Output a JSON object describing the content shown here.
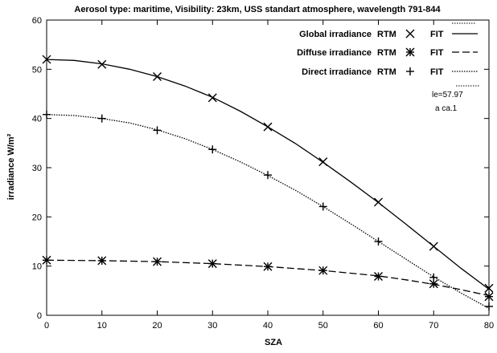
{
  "chart_data": {
    "type": "line",
    "title": "Aerosol type: maritime, Visibility: 23km, USS standart atmosphere, wavelength 791-844",
    "xlabel": "SZA",
    "ylabel": "irradiance W/m²",
    "xlim": [
      0,
      80
    ],
    "ylim": [
      0,
      60
    ],
    "xticks": [
      0,
      10,
      20,
      30,
      40,
      50,
      60,
      70,
      80
    ],
    "yticks": [
      0,
      10,
      20,
      30,
      40,
      50,
      60
    ],
    "grid": false,
    "legend_position": "top-right",
    "x": [
      0,
      10,
      20,
      30,
      40,
      50,
      60,
      70,
      80
    ],
    "series": [
      {
        "name": "Global irradiance",
        "rtm_label": "RTM",
        "fit_label": "FIT",
        "marker": "x",
        "line_style": "solid",
        "values": [
          52.0,
          51.0,
          48.5,
          44.2,
          38.3,
          31.2,
          23.0,
          14.0,
          5.5
        ],
        "fit": [
          [
            0,
            52.0
          ],
          [
            5,
            51.8
          ],
          [
            10,
            51.1
          ],
          [
            15,
            50.0
          ],
          [
            20,
            48.5
          ],
          [
            25,
            46.6
          ],
          [
            30,
            44.3
          ],
          [
            35,
            41.5
          ],
          [
            40,
            38.3
          ],
          [
            45,
            34.9
          ],
          [
            50,
            31.1
          ],
          [
            55,
            27.1
          ],
          [
            60,
            22.9
          ],
          [
            65,
            18.5
          ],
          [
            70,
            14.0
          ],
          [
            75,
            9.5
          ],
          [
            80,
            5.3
          ]
        ]
      },
      {
        "name": "Diffuse irradiance",
        "rtm_label": "RTM",
        "fit_label": "FIT",
        "marker": "asterisk",
        "line_style": "dashed",
        "values": [
          11.2,
          11.1,
          10.9,
          10.5,
          9.9,
          9.1,
          7.9,
          6.4,
          3.8
        ],
        "fit": [
          [
            0,
            11.2
          ],
          [
            10,
            11.1
          ],
          [
            20,
            10.9
          ],
          [
            30,
            10.5
          ],
          [
            40,
            9.9
          ],
          [
            50,
            9.1
          ],
          [
            60,
            8.0
          ],
          [
            65,
            7.2
          ],
          [
            70,
            6.3
          ],
          [
            75,
            5.2
          ],
          [
            80,
            4.0
          ]
        ]
      },
      {
        "name": "Direct irradiance",
        "rtm_label": "RTM",
        "fit_label": "FIT",
        "marker": "plus",
        "line_style": "dotted",
        "values": [
          40.8,
          40.0,
          37.6,
          33.7,
          28.5,
          22.1,
          15.0,
          7.7,
          1.8
        ],
        "fit": [
          [
            0,
            40.8
          ],
          [
            5,
            40.6
          ],
          [
            10,
            40.0
          ],
          [
            15,
            39.1
          ],
          [
            20,
            37.7
          ],
          [
            25,
            35.9
          ],
          [
            30,
            33.7
          ],
          [
            35,
            31.2
          ],
          [
            40,
            28.4
          ],
          [
            45,
            25.4
          ],
          [
            50,
            22.1
          ],
          [
            55,
            18.6
          ],
          [
            60,
            15.0
          ],
          [
            65,
            11.4
          ],
          [
            70,
            7.8
          ],
          [
            75,
            4.5
          ],
          [
            80,
            1.4
          ]
        ]
      }
    ],
    "annotations": [
      "le=57.97",
      "a ca.1"
    ]
  }
}
